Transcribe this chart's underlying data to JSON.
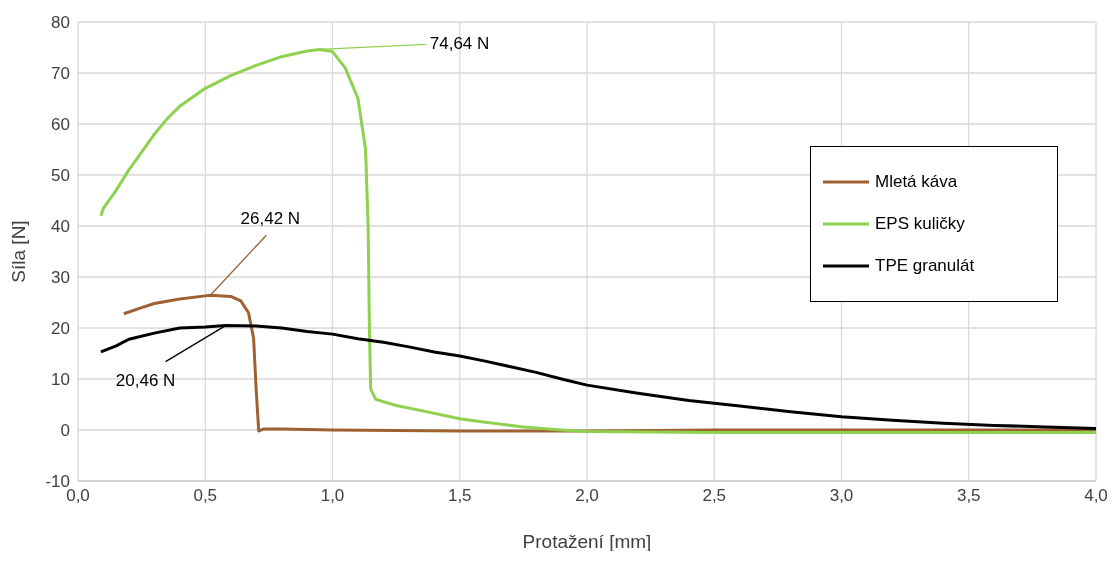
{
  "chart_data": {
    "type": "line",
    "xlabel": "Protažení [mm]",
    "ylabel": "Síla [N]",
    "xlim": [
      0,
      4
    ],
    "xticks": [
      {
        "value": 0,
        "label": "0,0"
      },
      {
        "value": 0.5,
        "label": "0,5"
      },
      {
        "value": 1,
        "label": "1,0"
      },
      {
        "value": 1.5,
        "label": "1,5"
      },
      {
        "value": 2,
        "label": "2,0"
      },
      {
        "value": 2.5,
        "label": "2,5"
      },
      {
        "value": 3,
        "label": "3,0"
      },
      {
        "value": 3.5,
        "label": "3,5"
      },
      {
        "value": 4,
        "label": "4,0"
      }
    ],
    "ylim": [
      -10,
      80
    ],
    "yticks": [
      -10,
      0,
      10,
      20,
      30,
      40,
      50,
      60,
      70,
      80
    ],
    "grid": true,
    "legend": "right",
    "marker": "none",
    "line_style": "solid",
    "series": [
      {
        "name": "Mletá káva",
        "color": "#9e6232",
        "x": [
          0.18,
          0.25,
          0.3,
          0.4,
          0.5,
          0.52,
          0.6,
          0.64,
          0.67,
          0.69,
          0.7,
          0.71,
          0.73,
          0.8,
          1.0,
          1.5,
          2.0,
          2.5,
          3.0,
          3.5,
          4.0
        ],
        "values": [
          22.8,
          24,
          24.8,
          25.7,
          26.3,
          26.4,
          26.2,
          25.3,
          23,
          18,
          8,
          -0.2,
          0.2,
          0.2,
          0,
          -0.2,
          -0.2,
          0,
          0,
          0,
          0
        ]
      },
      {
        "name": "EPS kuličky",
        "color": "#8fd14f",
        "x": [
          0.09,
          0.1,
          0.15,
          0.2,
          0.25,
          0.3,
          0.35,
          0.4,
          0.5,
          0.6,
          0.7,
          0.8,
          0.9,
          0.95,
          1.0,
          1.05,
          1.1,
          1.13,
          1.14,
          1.145,
          1.15,
          1.17,
          1.25,
          1.35,
          1.5,
          1.6,
          1.75,
          1.9,
          2.0,
          2.5,
          3.0,
          3.5,
          4.0
        ],
        "values": [
          42,
          43.5,
          47,
          51,
          54.5,
          58,
          61,
          63.5,
          67,
          69.5,
          71.5,
          73.2,
          74.3,
          74.6,
          74.2,
          71,
          65,
          55,
          40,
          20,
          8,
          6,
          4.8,
          3.8,
          2.2,
          1.5,
          0.6,
          0,
          -0.3,
          -0.5,
          -0.5,
          -0.5,
          -0.5
        ]
      },
      {
        "name": "TPE granulát",
        "color": "#000000",
        "x": [
          0.09,
          0.15,
          0.2,
          0.3,
          0.4,
          0.5,
          0.58,
          0.7,
          0.8,
          0.9,
          1.0,
          1.1,
          1.2,
          1.3,
          1.4,
          1.5,
          1.6,
          1.7,
          1.8,
          1.9,
          2.0,
          2.2,
          2.4,
          2.6,
          2.8,
          3.0,
          3.2,
          3.4,
          3.6,
          3.8,
          4.0
        ],
        "values": [
          15.3,
          16.5,
          17.8,
          19,
          20,
          20.2,
          20.5,
          20.4,
          20,
          19.3,
          18.8,
          17.9,
          17.2,
          16.3,
          15.3,
          14.5,
          13.5,
          12.4,
          11.3,
          10,
          8.8,
          7.2,
          5.8,
          4.7,
          3.6,
          2.6,
          1.9,
          1.3,
          0.9,
          0.6,
          0.3
        ]
      }
    ],
    "annotations": [
      {
        "text": "26,42 N",
        "x": 0.52,
        "y": 26.42
      },
      {
        "text": "74,64 N",
        "x": 0.95,
        "y": 74.64
      },
      {
        "text": "20,46 N",
        "x": 0.58,
        "y": 20.46
      }
    ]
  }
}
